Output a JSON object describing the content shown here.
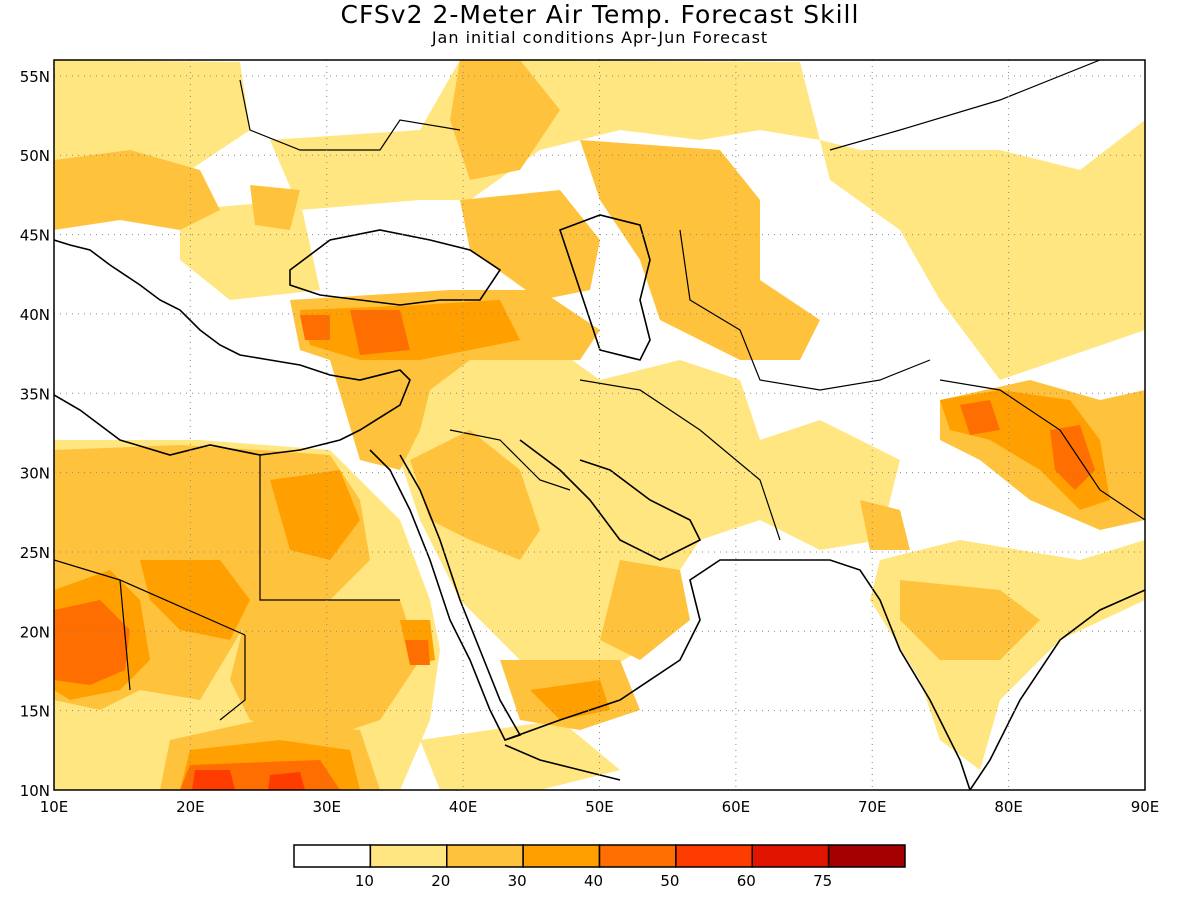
{
  "title": "CFSv2 2-Meter Air Temp. Forecast Skill",
  "subtitle": "Jan initial conditions  Apr-Jun Forecast",
  "lat_labels": [
    "55N",
    "50N",
    "45N",
    "40N",
    "35N",
    "30N",
    "25N",
    "20N",
    "15N",
    "10N"
  ],
  "lon_labels": [
    "10E",
    "20E",
    "30E",
    "40E",
    "50E",
    "60E",
    "70E",
    "80E",
    "90E"
  ],
  "legend": {
    "colors": [
      "#ffffff",
      "#ffe680",
      "#ffc23c",
      "#ffa000",
      "#ff6e00",
      "#ff3c00",
      "#e11400",
      "#a50000"
    ],
    "labels": [
      "10",
      "20",
      "30",
      "40",
      "50",
      "60",
      "75"
    ]
  },
  "map_extent": {
    "lon": [
      10,
      90
    ],
    "lat": [
      10,
      56
    ]
  }
}
